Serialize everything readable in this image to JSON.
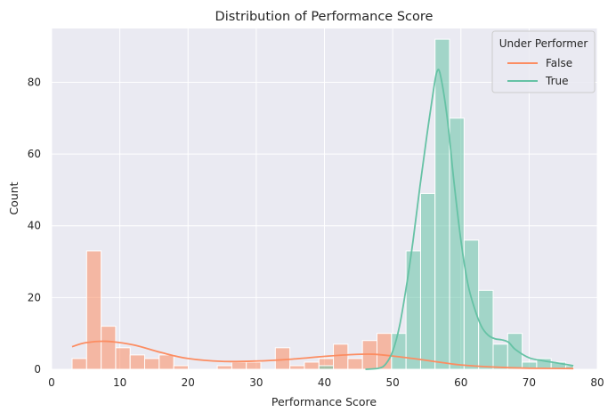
{
  "chart_data": {
    "type": "bar",
    "title": "Distribution of Performance Score",
    "xlabel": "Performance Score",
    "ylabel": "Count",
    "xlim": [
      0,
      80
    ],
    "ylim": [
      0,
      95
    ],
    "x_ticks": [
      0,
      10,
      20,
      30,
      40,
      50,
      60,
      70,
      80
    ],
    "y_ticks": [
      0,
      20,
      40,
      60,
      80
    ],
    "grid": true,
    "legend_position": "top-right",
    "legend_title": "Under Performer",
    "bin_edges": [
      3.0,
      5.13,
      7.26,
      9.39,
      11.51,
      13.64,
      15.77,
      17.9,
      20.03,
      22.16,
      24.29,
      26.41,
      28.54,
      30.67,
      32.8,
      34.93,
      37.06,
      39.19,
      41.31,
      43.44,
      45.57,
      47.7,
      49.83,
      51.96,
      54.09,
      56.21,
      58.34,
      60.47,
      62.6,
      64.73,
      66.86,
      68.99,
      71.11,
      73.24,
      75.37,
      76.5
    ],
    "series": [
      {
        "name": "False",
        "color": "#fc8d62",
        "counts": [
          3,
          33,
          12,
          6,
          4,
          3,
          4,
          1,
          0,
          0,
          1,
          2,
          2,
          0,
          6,
          1,
          2,
          3,
          7,
          3,
          8,
          10,
          0,
          0,
          0,
          0,
          0,
          0,
          0,
          0,
          0,
          0,
          0,
          0,
          0
        ],
        "kde_x": [
          3,
          5,
          8,
          12,
          16,
          20,
          25,
          30,
          35,
          40,
          44,
          47,
          50,
          53,
          56,
          60,
          65,
          70,
          76.5
        ],
        "kde_y": [
          6.3,
          7.4,
          7.8,
          6.8,
          4.7,
          3.0,
          2.2,
          2.3,
          2.8,
          3.6,
          4.1,
          4.2,
          3.7,
          3.0,
          2.2,
          1.2,
          0.6,
          0.3,
          0.2
        ]
      },
      {
        "name": "True",
        "color": "#66c2a5",
        "counts": [
          0,
          0,
          0,
          0,
          0,
          0,
          0,
          0,
          0,
          0,
          0,
          0,
          0,
          0,
          0,
          0,
          0,
          1,
          0,
          0,
          0,
          0,
          10,
          33,
          49,
          92,
          70,
          36,
          22,
          7,
          10,
          2,
          3,
          2,
          1
        ],
        "kde_x": [
          46,
          48,
          49,
          50,
          51,
          52,
          53,
          54,
          55,
          56,
          56.5,
          57,
          58,
          59,
          60,
          61,
          62,
          63,
          64,
          65,
          66,
          67,
          68,
          70,
          72,
          74,
          76.5
        ],
        "kde_y": [
          0,
          0.3,
          1.5,
          5,
          12,
          23,
          36,
          51,
          65,
          78,
          83,
          82,
          70,
          52,
          36,
          24,
          17,
          12,
          9.5,
          8.5,
          8.2,
          7.5,
          5.5,
          3.2,
          2.4,
          1.8,
          1.0
        ]
      }
    ]
  }
}
